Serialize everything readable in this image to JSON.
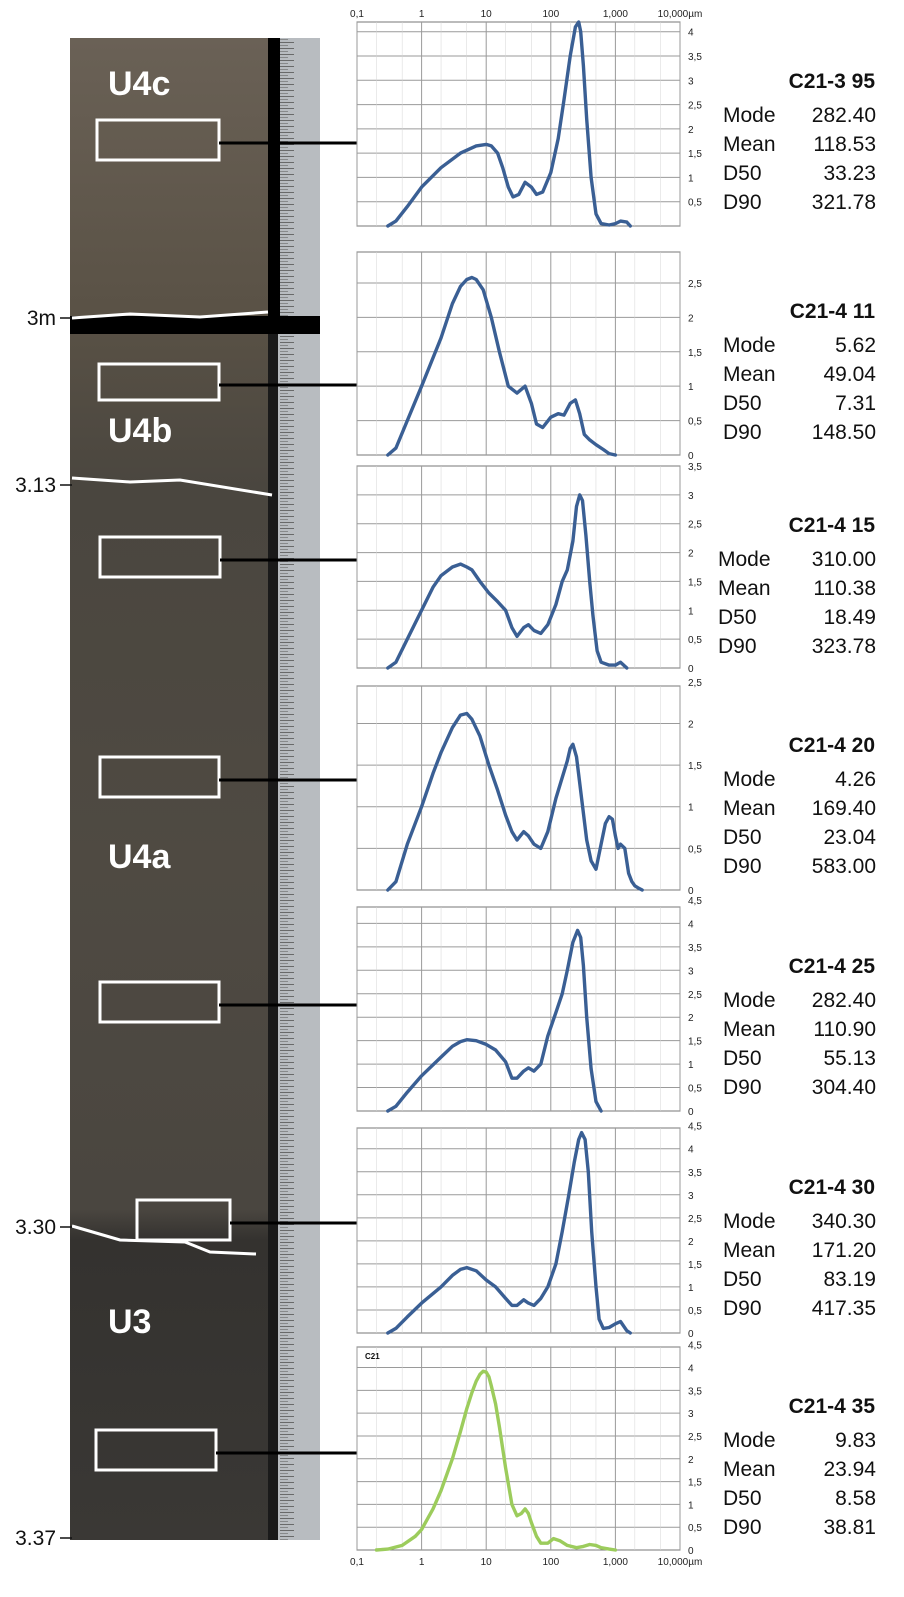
{
  "core": {
    "units": [
      {
        "label": "U4c"
      },
      {
        "label": "U4b"
      },
      {
        "label": "U4a"
      },
      {
        "label": "U3"
      }
    ],
    "depths": [
      {
        "label": "3m"
      },
      {
        "label": "3.13"
      },
      {
        "label": "3.30"
      },
      {
        "label": "3.37"
      }
    ]
  },
  "axis": {
    "top_ticks": [
      "0,1",
      "1",
      "10",
      "100",
      "1,000",
      "10,000µm"
    ],
    "bottom_ticks": [
      "0,1",
      "1",
      "10",
      "100",
      "1,000",
      "10,000µm"
    ]
  },
  "colors": {
    "series_default": "#3a5f94",
    "series_highlight": "#9ccc5c"
  },
  "chart_data": [
    {
      "type": "line",
      "title": "C21-3 95",
      "xscale": "log",
      "xlim": [
        0.1,
        10000
      ],
      "ylim": [
        0,
        4.2
      ],
      "yticks": [
        "0,5",
        "1",
        "1,5",
        "2",
        "2,5",
        "3",
        "3,5",
        "4"
      ],
      "stats": [
        {
          "label": "Mode",
          "value": "282.40"
        },
        {
          "label": "Mean",
          "value": "118.53"
        },
        {
          "label": "D50",
          "value": "33.23"
        },
        {
          "label": "D90",
          "value": "321.78"
        }
      ],
      "series": [
        {
          "color": "#3a5f94",
          "x": [
            0.3,
            0.4,
            0.6,
            1,
            2,
            4,
            7,
            10,
            12,
            15,
            18,
            22,
            26,
            32,
            40,
            50,
            60,
            75,
            100,
            130,
            160,
            200,
            240,
            270,
            290,
            320,
            360,
            420,
            500,
            600,
            800,
            1000,
            1200,
            1500,
            1700
          ],
          "y": [
            0,
            0.1,
            0.4,
            0.8,
            1.2,
            1.5,
            1.65,
            1.68,
            1.65,
            1.5,
            1.2,
            0.8,
            0.6,
            0.65,
            0.9,
            0.8,
            0.65,
            0.7,
            1.1,
            1.8,
            2.6,
            3.5,
            4.1,
            4.2,
            4.0,
            3.3,
            2.2,
            1.0,
            0.25,
            0.05,
            0.02,
            0.05,
            0.1,
            0.08,
            0
          ]
        }
      ]
    },
    {
      "type": "line",
      "title": "C21-4 11",
      "xscale": "log",
      "xlim": [
        0.1,
        10000
      ],
      "ylim": [
        0,
        2.95
      ],
      "yticks": [
        "0",
        "0,5",
        "1",
        "1,5",
        "2",
        "2,5"
      ],
      "stats": [
        {
          "label": "Mode",
          "value": "5.62"
        },
        {
          "label": "Mean",
          "value": "49.04"
        },
        {
          "label": "D50",
          "value": "7.31"
        },
        {
          "label": "D90",
          "value": "148.50"
        }
      ],
      "series": [
        {
          "color": "#3a5f94",
          "x": [
            0.3,
            0.4,
            0.6,
            1,
            2,
            3,
            4,
            5,
            6,
            7,
            9,
            12,
            16,
            22,
            30,
            40,
            50,
            60,
            75,
            100,
            130,
            160,
            200,
            240,
            280,
            330,
            400,
            500,
            650,
            800,
            1000
          ],
          "y": [
            0,
            0.1,
            0.5,
            1.0,
            1.7,
            2.2,
            2.45,
            2.55,
            2.58,
            2.55,
            2.4,
            2.0,
            1.5,
            1.0,
            0.9,
            1.0,
            0.75,
            0.45,
            0.4,
            0.55,
            0.6,
            0.58,
            0.75,
            0.8,
            0.6,
            0.3,
            0.22,
            0.15,
            0.08,
            0.02,
            0
          ]
        }
      ]
    },
    {
      "type": "line",
      "title": "C21-4 15",
      "xscale": "log",
      "xlim": [
        0.1,
        10000
      ],
      "ylim": [
        0,
        3.5
      ],
      "yticks": [
        "0",
        "0,5",
        "1",
        "1,5",
        "2",
        "2,5",
        "3",
        "3,5"
      ],
      "stats": [
        {
          "label": "Mode",
          "value": "310.00"
        },
        {
          "label": "Mean",
          "value": "110.38"
        },
        {
          "label": "D50",
          "value": "18.49"
        },
        {
          "label": "D90",
          "value": "323.78"
        }
      ],
      "series": [
        {
          "color": "#3a5f94",
          "x": [
            0.3,
            0.4,
            0.6,
            1,
            1.5,
            2,
            3,
            4,
            5,
            6,
            8,
            11,
            15,
            20,
            25,
            30,
            38,
            45,
            55,
            70,
            90,
            120,
            150,
            180,
            220,
            250,
            280,
            310,
            350,
            400,
            450,
            520,
            600,
            800,
            1000,
            1200,
            1500
          ],
          "y": [
            0,
            0.1,
            0.5,
            1.0,
            1.4,
            1.6,
            1.75,
            1.8,
            1.75,
            1.7,
            1.5,
            1.3,
            1.15,
            1.0,
            0.7,
            0.55,
            0.7,
            0.75,
            0.65,
            0.6,
            0.75,
            1.1,
            1.5,
            1.7,
            2.2,
            2.8,
            3.0,
            2.9,
            2.3,
            1.5,
            0.9,
            0.3,
            0.1,
            0.05,
            0.05,
            0.1,
            0
          ]
        }
      ]
    },
    {
      "type": "line",
      "title": "C21-4 20",
      "xscale": "log",
      "xlim": [
        0.1,
        10000
      ],
      "ylim": [
        0,
        2.45
      ],
      "yticks": [
        "0",
        "0,5",
        "1",
        "1,5",
        "2",
        "2,5"
      ],
      "stats": [
        {
          "label": "Mode",
          "value": "4.26"
        },
        {
          "label": "Mean",
          "value": "169.40"
        },
        {
          "label": "D50",
          "value": "23.04"
        },
        {
          "label": "D90",
          "value": "583.00"
        }
      ],
      "series": [
        {
          "color": "#3a5f94",
          "x": [
            0.3,
            0.4,
            0.6,
            1,
            1.5,
            2,
            3,
            4,
            5,
            6,
            8,
            11,
            15,
            20,
            25,
            30,
            38,
            45,
            55,
            70,
            90,
            120,
            150,
            180,
            200,
            220,
            250,
            300,
            360,
            420,
            500,
            600,
            700,
            800,
            900,
            1000,
            1100,
            1200,
            1400,
            1600,
            1800,
            2000,
            2300,
            2600
          ],
          "y": [
            0,
            0.1,
            0.55,
            1.0,
            1.4,
            1.65,
            1.95,
            2.1,
            2.12,
            2.05,
            1.85,
            1.5,
            1.2,
            0.9,
            0.7,
            0.6,
            0.7,
            0.65,
            0.55,
            0.5,
            0.7,
            1.1,
            1.35,
            1.55,
            1.7,
            1.75,
            1.6,
            1.1,
            0.6,
            0.35,
            0.25,
            0.55,
            0.8,
            0.88,
            0.85,
            0.65,
            0.5,
            0.55,
            0.5,
            0.2,
            0.1,
            0.05,
            0.02,
            0
          ]
        }
      ]
    },
    {
      "type": "line",
      "title": "C21-4 25",
      "xscale": "log",
      "xlim": [
        0.1,
        10000
      ],
      "ylim": [
        0,
        4.35
      ],
      "yticks": [
        "0",
        "0,5",
        "1",
        "1,5",
        "2",
        "2,5",
        "3",
        "3,5",
        "4",
        "4,5"
      ],
      "stats": [
        {
          "label": "Mode",
          "value": "282.40"
        },
        {
          "label": "Mean",
          "value": "110.90"
        },
        {
          "label": "D50",
          "value": "55.13"
        },
        {
          "label": "D90",
          "value": "304.40"
        }
      ],
      "series": [
        {
          "color": "#3a5f94",
          "x": [
            0.3,
            0.4,
            0.6,
            1,
            2,
            3,
            4,
            5,
            7,
            10,
            14,
            20,
            25,
            30,
            38,
            45,
            55,
            70,
            90,
            120,
            150,
            180,
            220,
            260,
            290,
            320,
            360,
            420,
            500,
            600
          ],
          "y": [
            0,
            0.1,
            0.4,
            0.75,
            1.15,
            1.38,
            1.48,
            1.52,
            1.5,
            1.42,
            1.3,
            1.05,
            0.7,
            0.7,
            0.85,
            0.92,
            0.85,
            1.0,
            1.6,
            2.1,
            2.5,
            3.0,
            3.6,
            3.85,
            3.7,
            3.1,
            2.0,
            0.9,
            0.2,
            0
          ]
        }
      ]
    },
    {
      "type": "line",
      "title": "C21-4 30",
      "xscale": "log",
      "xlim": [
        0.1,
        10000
      ],
      "ylim": [
        0,
        4.45
      ],
      "yticks": [
        "0",
        "0,5",
        "1",
        "1,5",
        "2",
        "2,5",
        "3",
        "3,5",
        "4",
        "4,5"
      ],
      "stats": [
        {
          "label": "Mode",
          "value": "340.30"
        },
        {
          "label": "Mean",
          "value": "171.20"
        },
        {
          "label": "D50",
          "value": "83.19"
        },
        {
          "label": "D90",
          "value": "417.35"
        }
      ],
      "series": [
        {
          "color": "#3a5f94",
          "x": [
            0.3,
            0.4,
            0.6,
            1,
            2,
            3,
            4,
            5,
            7,
            10,
            14,
            20,
            25,
            30,
            38,
            45,
            55,
            70,
            90,
            120,
            150,
            190,
            230,
            270,
            300,
            340,
            380,
            430,
            500,
            560,
            650,
            800,
            1000,
            1200,
            1500,
            1700
          ],
          "y": [
            0,
            0.1,
            0.35,
            0.65,
            1.0,
            1.25,
            1.38,
            1.42,
            1.35,
            1.15,
            1.0,
            0.75,
            0.6,
            0.6,
            0.72,
            0.65,
            0.6,
            0.75,
            1.0,
            1.5,
            2.2,
            3.0,
            3.7,
            4.2,
            4.35,
            4.2,
            3.5,
            2.2,
            1.0,
            0.3,
            0.1,
            0.12,
            0.2,
            0.25,
            0.05,
            0
          ]
        }
      ]
    },
    {
      "type": "line",
      "title": "C21-4 35",
      "legend_label": "C21",
      "xscale": "log",
      "xlim": [
        0.1,
        10000
      ],
      "ylim": [
        0,
        4.45
      ],
      "yticks": [
        "0",
        "0,5",
        "1",
        "1,5",
        "2",
        "2,5",
        "3",
        "3,5",
        "4",
        "4,5"
      ],
      "stats": [
        {
          "label": "Mode",
          "value": "9.83"
        },
        {
          "label": "Mean",
          "value": "23.94"
        },
        {
          "label": "D50",
          "value": "8.58"
        },
        {
          "label": "D90",
          "value": "38.81"
        }
      ],
      "series": [
        {
          "color": "#9ccc5c",
          "x": [
            0.2,
            0.3,
            0.5,
            0.8,
            1,
            1.5,
            2,
            3,
            4,
            5,
            6,
            7,
            8,
            9,
            10,
            11,
            12,
            14,
            16,
            20,
            25,
            30,
            35,
            40,
            45,
            50,
            60,
            70,
            90,
            110,
            140,
            180,
            250,
            320,
            400,
            500,
            600,
            800,
            1000
          ],
          "y": [
            0,
            0.02,
            0.1,
            0.3,
            0.45,
            0.9,
            1.3,
            2.0,
            2.6,
            3.1,
            3.45,
            3.7,
            3.85,
            3.92,
            3.9,
            3.8,
            3.6,
            3.2,
            2.7,
            1.8,
            1.0,
            0.75,
            0.8,
            0.9,
            0.8,
            0.6,
            0.3,
            0.15,
            0.15,
            0.25,
            0.2,
            0.1,
            0.05,
            0.08,
            0.12,
            0.1,
            0.05,
            0.02,
            0
          ]
        }
      ]
    }
  ]
}
